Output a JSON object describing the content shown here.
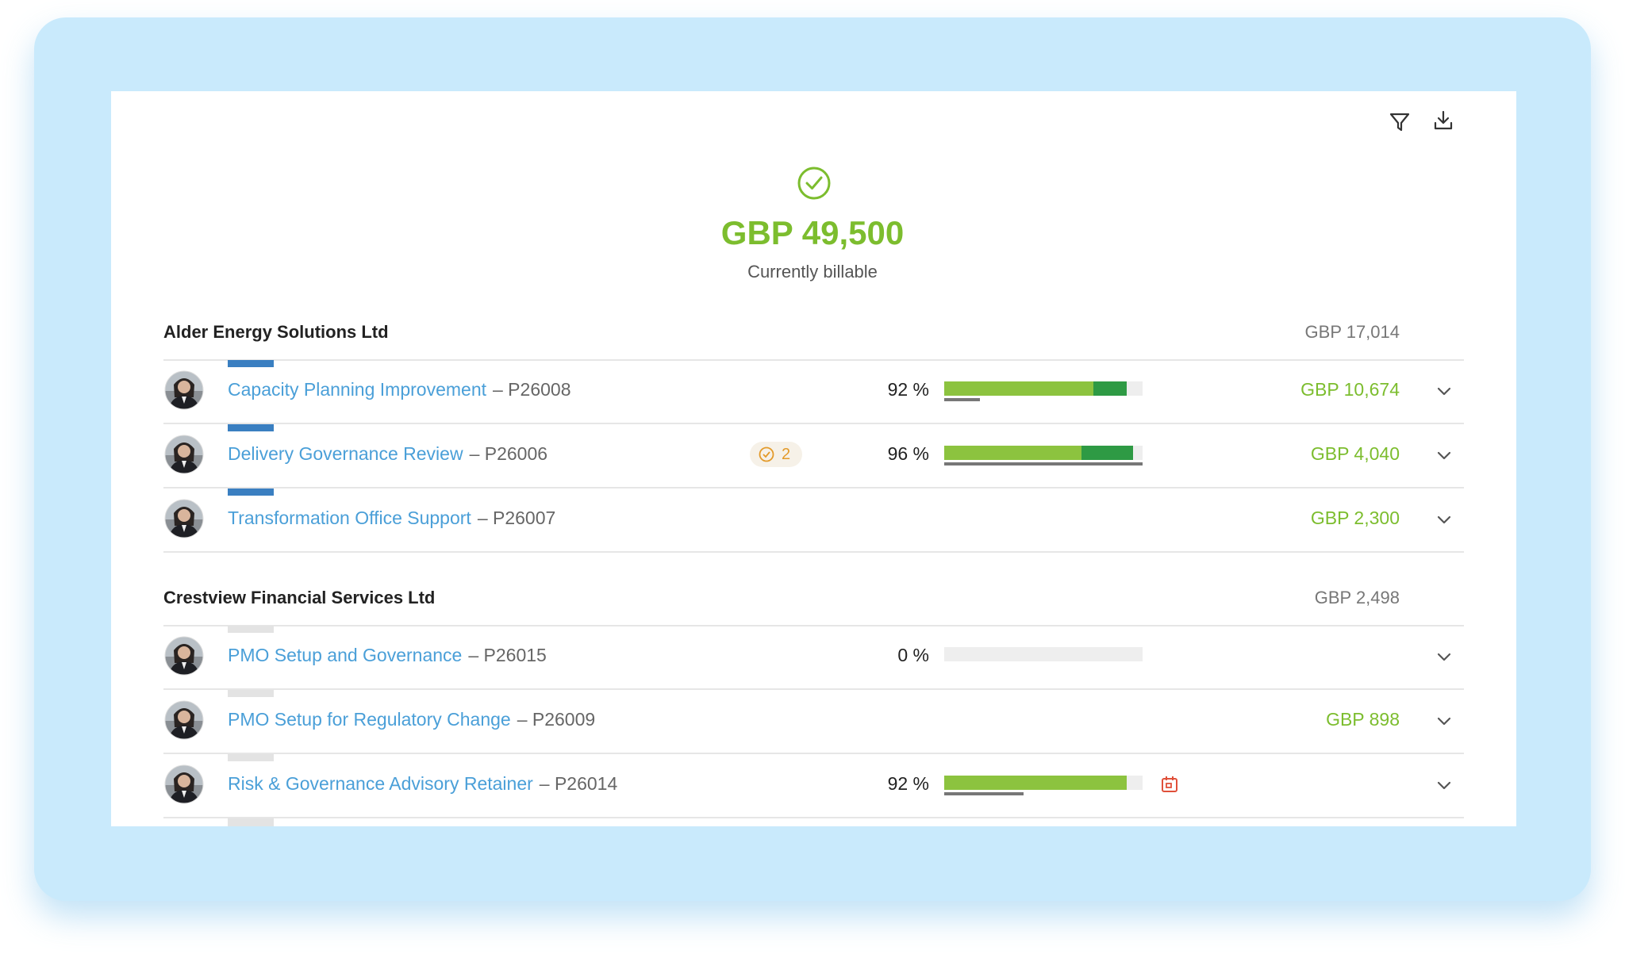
{
  "header": {
    "total": "GBP 49,500",
    "caption": "Currently billable"
  },
  "groups": [
    {
      "name": "Alder Energy Solutions Ltd",
      "amount": "GBP 17,014",
      "projects": [
        {
          "name": "Capacity Planning Improvement",
          "code": "– P26008",
          "percent_label": "92 %",
          "segments": [
            75,
            17
          ],
          "baseline": 18,
          "amount": "GBP 10,674"
        },
        {
          "name": "Delivery Governance Review",
          "code": "– P26006",
          "badge": 2,
          "percent_label": "96 %",
          "segments": [
            69,
            26
          ],
          "baseline": 100,
          "amount": "GBP 4,040"
        },
        {
          "name": "Transformation Office Support",
          "code": "– P26007",
          "amount": "GBP 2,300"
        }
      ]
    },
    {
      "name": "Crestview Financial Services Ltd",
      "amount": "GBP 2,498",
      "projects": [
        {
          "name": "PMO Setup and Governance",
          "code": "– P26015",
          "percent_label": "0 %",
          "segments": [
            0
          ],
          "baseline": 0
        },
        {
          "name": "PMO Setup for Regulatory Change",
          "code": "– P26009",
          "amount": "GBP 898"
        },
        {
          "name": "Risk & Governance Advisory Retainer",
          "code": "– P26014",
          "percent_label": "92 %",
          "segments": [
            92
          ],
          "baseline": 40,
          "calendar": true
        }
      ]
    }
  ]
}
